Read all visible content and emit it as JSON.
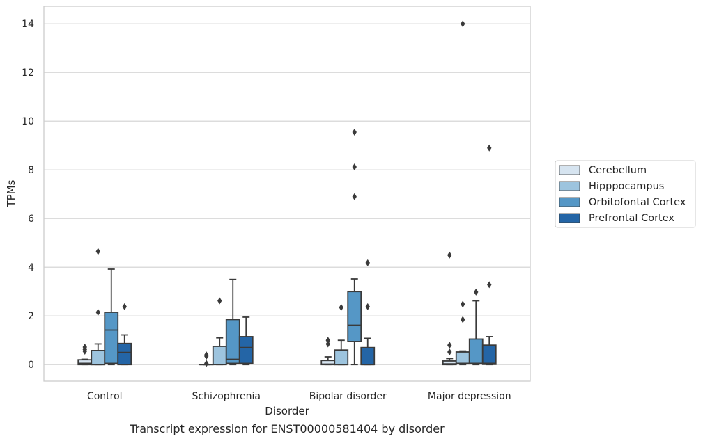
{
  "caption": "Transcript expression for ENST00000581404 by disorder",
  "chart_data": {
    "type": "box",
    "xlabel": "Disorder",
    "ylabel": "TPMs",
    "ylim": [
      -0.68,
      14.72
    ],
    "yticks": [
      0,
      2,
      4,
      6,
      8,
      10,
      12,
      14
    ],
    "grid": "horizontal",
    "legend_position": "right",
    "categories": [
      "Control",
      "Schizophrenia",
      "Bipolar disorder",
      "Major depression"
    ],
    "series": [
      {
        "name": "Cerebellum",
        "color": "#d6e4f0",
        "boxes": [
          {
            "whislo": 0,
            "q1": 0,
            "med": 0.05,
            "q3": 0.2,
            "whishi": 0.22,
            "fliers": [
              0.55,
              0.62,
              0.72
            ]
          },
          {
            "whislo": 0,
            "q1": 0,
            "med": 0,
            "q3": 0,
            "whishi": 0,
            "fliers": [
              0.05,
              0.35,
              0.4
            ]
          },
          {
            "whislo": 0,
            "q1": 0,
            "med": 0.02,
            "q3": 0.17,
            "whishi": 0.32,
            "fliers": [
              0.85,
              1.0
            ]
          },
          {
            "whislo": 0,
            "q1": 0,
            "med": 0.03,
            "q3": 0.15,
            "whishi": 0.25,
            "fliers": [
              0.52,
              0.8,
              4.5
            ]
          }
        ]
      },
      {
        "name": "Hipppocampus",
        "color": "#9dc4de",
        "boxes": [
          {
            "whislo": 0,
            "q1": 0,
            "med": 0,
            "q3": 0.58,
            "whishi": 0.85,
            "fliers": [
              2.15,
              4.65
            ]
          },
          {
            "whislo": 0,
            "q1": 0,
            "med": 0.01,
            "q3": 0.75,
            "whishi": 1.1,
            "fliers": [
              2.62
            ]
          },
          {
            "whislo": 0,
            "q1": 0,
            "med": 0,
            "q3": 0.6,
            "whishi": 1.0,
            "fliers": [
              2.35
            ]
          },
          {
            "whislo": 0,
            "q1": 0.03,
            "med": 0.05,
            "q3": 0.52,
            "whishi": 0.56,
            "fliers": [
              1.85,
              2.48,
              14.0
            ]
          }
        ]
      },
      {
        "name": "Orbitofontal Cortex",
        "color": "#5597c6",
        "boxes": [
          {
            "whislo": 0,
            "q1": 0.05,
            "med": 1.42,
            "q3": 2.15,
            "whishi": 3.92,
            "fliers": []
          },
          {
            "whislo": 0,
            "q1": 0.05,
            "med": 0.22,
            "q3": 1.85,
            "whishi": 3.5,
            "fliers": []
          },
          {
            "whislo": 0,
            "q1": 0.95,
            "med": 1.62,
            "q3": 3.0,
            "whishi": 3.52,
            "fliers": [
              6.9,
              8.12,
              9.55
            ]
          },
          {
            "whislo": 0,
            "q1": 0.05,
            "med": 0.05,
            "q3": 1.05,
            "whishi": 2.62,
            "fliers": [
              2.98
            ]
          }
        ]
      },
      {
        "name": "Prefrontal Cortex",
        "color": "#2465a6",
        "boxes": [
          {
            "whislo": 0,
            "q1": 0,
            "med": 0.5,
            "q3": 0.87,
            "whishi": 1.22,
            "fliers": [
              2.38
            ]
          },
          {
            "whislo": 0,
            "q1": 0.05,
            "med": 0.7,
            "q3": 1.15,
            "whishi": 1.95,
            "fliers": []
          },
          {
            "whislo": 0,
            "q1": 0,
            "med": 0,
            "q3": 0.7,
            "whishi": 1.08,
            "fliers": [
              2.38,
              4.18
            ]
          },
          {
            "whislo": 0,
            "q1": 0.01,
            "med": 0.05,
            "q3": 0.8,
            "whishi": 1.15,
            "fliers": [
              3.28,
              8.9
            ]
          }
        ]
      }
    ]
  }
}
